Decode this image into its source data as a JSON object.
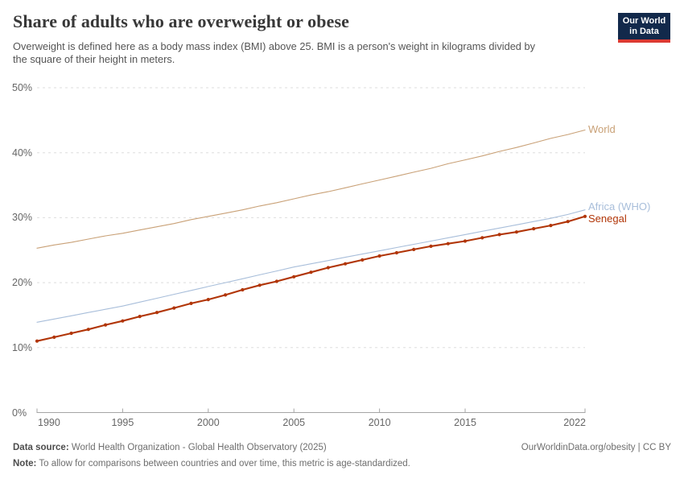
{
  "logo": {
    "line1": "Our World",
    "line2": "in Data",
    "bg_color": "#12294b",
    "stripe_color": "#dc3a32"
  },
  "chart_data": {
    "type": "line",
    "title": "Share of adults who are overweight or obese",
    "subtitle": "Overweight is defined here as a body mass index (BMI) above 25. BMI is a person's weight in kilograms divided by the square of their height in meters.",
    "xlabel": "",
    "ylabel": "",
    "y_unit": "%",
    "ylim": [
      0,
      50
    ],
    "y_ticks": [
      0,
      10,
      20,
      30,
      40,
      50
    ],
    "x_ticks": [
      1990,
      1995,
      2000,
      2005,
      2010,
      2015,
      2022
    ],
    "xlim": [
      1990,
      2022
    ],
    "grid": "horizontal-dashed",
    "legend_position": "line-end-labels-right",
    "years": [
      1990,
      1991,
      1992,
      1993,
      1994,
      1995,
      1996,
      1997,
      1998,
      1999,
      2000,
      2001,
      2002,
      2003,
      2004,
      2005,
      2006,
      2007,
      2008,
      2009,
      2010,
      2011,
      2012,
      2013,
      2014,
      2015,
      2016,
      2017,
      2018,
      2019,
      2020,
      2021,
      2022
    ],
    "series": [
      {
        "name": "World",
        "color": "#c9a177",
        "line_width": 1.1,
        "markers": false,
        "values": [
          25.3,
          25.8,
          26.2,
          26.7,
          27.2,
          27.6,
          28.1,
          28.6,
          29.1,
          29.7,
          30.2,
          30.7,
          31.2,
          31.8,
          32.3,
          32.9,
          33.5,
          34.0,
          34.6,
          35.2,
          35.8,
          36.4,
          37.0,
          37.6,
          38.3,
          38.9,
          39.5,
          40.2,
          40.8,
          41.5,
          42.2,
          42.8,
          43.5
        ]
      },
      {
        "name": "Africa (WHO)",
        "color": "#a8beda",
        "line_width": 1.1,
        "markers": false,
        "values": [
          13.9,
          14.4,
          14.9,
          15.4,
          15.9,
          16.4,
          17.0,
          17.6,
          18.2,
          18.8,
          19.4,
          20.0,
          20.6,
          21.2,
          21.8,
          22.4,
          22.9,
          23.4,
          23.9,
          24.4,
          24.9,
          25.4,
          25.9,
          26.4,
          26.9,
          27.4,
          27.9,
          28.4,
          28.9,
          29.4,
          29.9,
          30.5,
          31.2
        ]
      },
      {
        "name": "Senegal",
        "color": "#b13507",
        "line_width": 2.1,
        "markers": true,
        "values": [
          11.0,
          11.6,
          12.2,
          12.8,
          13.5,
          14.1,
          14.8,
          15.4,
          16.1,
          16.8,
          17.4,
          18.1,
          18.9,
          19.6,
          20.2,
          20.9,
          21.6,
          22.3,
          22.9,
          23.5,
          24.1,
          24.6,
          25.1,
          25.6,
          26.0,
          26.4,
          26.9,
          27.4,
          27.8,
          28.3,
          28.8,
          29.4,
          30.2
        ]
      }
    ],
    "axis_color": "#a5a5a5",
    "gridline_color": "#dedede",
    "tick_label_color": "#666666"
  },
  "footer": {
    "datasource_label": "Data source:",
    "datasource_text": " World Health Organization - Global Health Observatory (2025)",
    "attribution": "OurWorldinData.org/obesity | CC BY",
    "note_label": "Note:",
    "note_text": " To allow for comparisons between countries and over time, this metric is age-standardized."
  }
}
